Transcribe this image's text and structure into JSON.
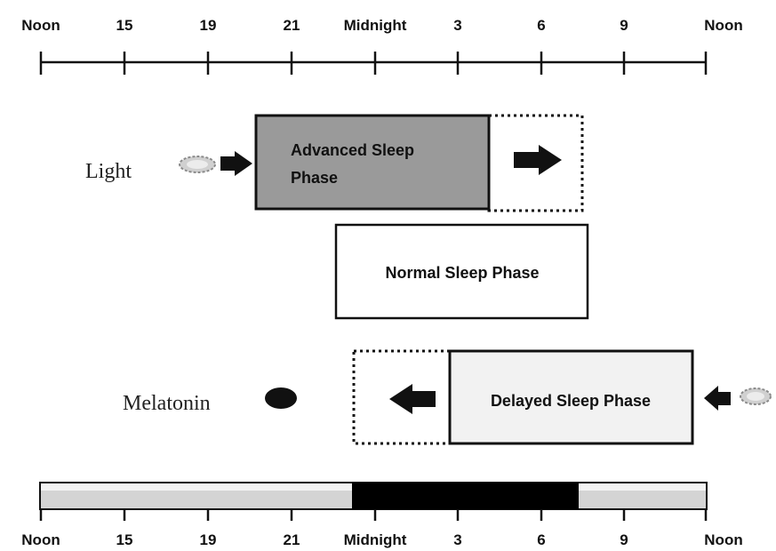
{
  "top_axis": {
    "ticks": [
      "Noon",
      "15",
      "19",
      "21",
      "Midnight",
      "3",
      "6",
      "9",
      "Noon"
    ]
  },
  "bottom_axis": {
    "ticks": [
      "Noon",
      "15",
      "19",
      "21",
      "Midnight",
      "3",
      "6",
      "9",
      "Noon"
    ]
  },
  "phases": {
    "advanced": {
      "label_line1": "Advanced Sleep",
      "label_line2": "Phase"
    },
    "normal": {
      "label": "Normal Sleep Phase"
    },
    "delayed": {
      "label": "Delayed Sleep Phase"
    }
  },
  "labels": {
    "light": "Light",
    "melatonin": "Melatonin"
  },
  "colors": {
    "advanced_fill": "#9a9a9a",
    "delayed_fill": "#f2f2f2",
    "dark_band": "#000000",
    "light_band": "#d4d4d4",
    "arrow": "#111111",
    "light_icon": "#bdbdbd"
  }
}
